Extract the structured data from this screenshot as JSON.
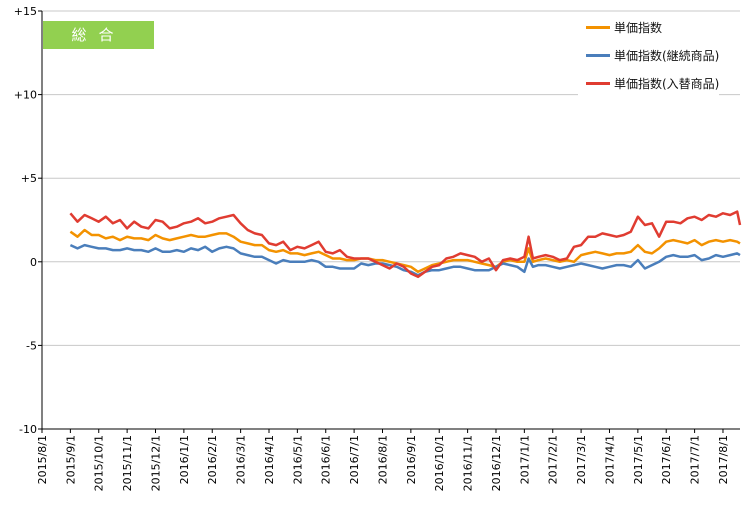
{
  "badge": "総合",
  "colors": {
    "unit_price": "#f39200",
    "continuing": "#4a7ebb",
    "replacement": "#e03c31",
    "badge": "#92d050"
  },
  "chart_data": {
    "type": "line",
    "title": "",
    "xlabel": "",
    "ylabel": "",
    "ylim": [
      -10,
      15
    ],
    "y_ticks": [
      "+15",
      "+10",
      "+5",
      "0",
      "-5",
      "-10"
    ],
    "y_tick_values": [
      15,
      10,
      5,
      0,
      -5,
      -10
    ],
    "x_tick_labels": [
      "2015/8/1",
      "2015/9/1",
      "2015/10/1",
      "2015/11/1",
      "2015/12/1",
      "2016/1/1",
      "2016/2/1",
      "2016/3/1",
      "2016/4/1",
      "2016/5/1",
      "2016/6/1",
      "2016/7/1",
      "2016/8/1",
      "2016/9/1",
      "2016/10/1",
      "2016/11/1",
      "2016/12/1",
      "2017/1/1",
      "2017/2/1",
      "2017/3/1",
      "2017/4/1",
      "2017/5/1",
      "2017/6/1",
      "2017/7/1",
      "2017/8/1"
    ],
    "x_range_months": [
      0,
      24.6
    ],
    "grid": "horizontal",
    "legend_position": "top-right",
    "series": [
      {
        "name": "単価指数",
        "color": "#f39200",
        "points": [
          [
            1,
            1.8
          ],
          [
            1.25,
            1.5
          ],
          [
            1.5,
            1.9
          ],
          [
            1.75,
            1.6
          ],
          [
            2,
            1.6
          ],
          [
            2.25,
            1.4
          ],
          [
            2.5,
            1.5
          ],
          [
            2.75,
            1.3
          ],
          [
            3,
            1.5
          ],
          [
            3.25,
            1.4
          ],
          [
            3.5,
            1.4
          ],
          [
            3.75,
            1.3
          ],
          [
            4,
            1.6
          ],
          [
            4.25,
            1.4
          ],
          [
            4.5,
            1.3
          ],
          [
            4.75,
            1.4
          ],
          [
            5,
            1.5
          ],
          [
            5.25,
            1.6
          ],
          [
            5.5,
            1.5
          ],
          [
            5.75,
            1.5
          ],
          [
            6,
            1.6
          ],
          [
            6.25,
            1.7
          ],
          [
            6.5,
            1.7
          ],
          [
            6.75,
            1.5
          ],
          [
            7,
            1.2
          ],
          [
            7.25,
            1.1
          ],
          [
            7.5,
            1.0
          ],
          [
            7.75,
            1.0
          ],
          [
            8,
            0.7
          ],
          [
            8.25,
            0.6
          ],
          [
            8.5,
            0.7
          ],
          [
            8.75,
            0.5
          ],
          [
            9,
            0.5
          ],
          [
            9.25,
            0.4
          ],
          [
            9.5,
            0.5
          ],
          [
            9.75,
            0.6
          ],
          [
            10,
            0.4
          ],
          [
            10.25,
            0.2
          ],
          [
            10.5,
            0.2
          ],
          [
            10.75,
            0.1
          ],
          [
            11,
            0.1
          ],
          [
            11.25,
            0.2
          ],
          [
            11.5,
            0.2
          ],
          [
            11.75,
            0.1
          ],
          [
            12,
            0.1
          ],
          [
            12.25,
            0.0
          ],
          [
            12.5,
            -0.1
          ],
          [
            12.75,
            -0.2
          ],
          [
            13,
            -0.3
          ],
          [
            13.25,
            -0.6
          ],
          [
            13.5,
            -0.4
          ],
          [
            13.75,
            -0.2
          ],
          [
            14,
            -0.1
          ],
          [
            14.25,
            0.0
          ],
          [
            14.5,
            0.1
          ],
          [
            14.75,
            0.1
          ],
          [
            15,
            0.1
          ],
          [
            15.25,
            0.0
          ],
          [
            15.5,
            -0.1
          ],
          [
            15.75,
            -0.2
          ],
          [
            16,
            -0.3
          ],
          [
            16.25,
            0.0
          ],
          [
            16.5,
            0.1
          ],
          [
            16.75,
            0.0
          ],
          [
            17,
            0.0
          ],
          [
            17.15,
            0.8
          ],
          [
            17.3,
            0.0
          ],
          [
            17.5,
            0.1
          ],
          [
            17.75,
            0.2
          ],
          [
            18,
            0.1
          ],
          [
            18.25,
            0.0
          ],
          [
            18.5,
            0.1
          ],
          [
            18.75,
            0.0
          ],
          [
            19,
            0.4
          ],
          [
            19.25,
            0.5
          ],
          [
            19.5,
            0.6
          ],
          [
            19.75,
            0.5
          ],
          [
            20,
            0.4
          ],
          [
            20.25,
            0.5
          ],
          [
            20.5,
            0.5
          ],
          [
            20.75,
            0.6
          ],
          [
            21,
            1.0
          ],
          [
            21.25,
            0.6
          ],
          [
            21.5,
            0.5
          ],
          [
            21.75,
            0.8
          ],
          [
            22,
            1.2
          ],
          [
            22.25,
            1.3
          ],
          [
            22.5,
            1.2
          ],
          [
            22.75,
            1.1
          ],
          [
            23,
            1.3
          ],
          [
            23.25,
            1.0
          ],
          [
            23.5,
            1.2
          ],
          [
            23.75,
            1.3
          ],
          [
            24,
            1.2
          ],
          [
            24.25,
            1.3
          ],
          [
            24.5,
            1.2
          ],
          [
            24.6,
            1.1
          ]
        ]
      },
      {
        "name": "単価指数(継続商品)",
        "color": "#4a7ebb",
        "points": [
          [
            1,
            1.0
          ],
          [
            1.25,
            0.8
          ],
          [
            1.5,
            1.0
          ],
          [
            1.75,
            0.9
          ],
          [
            2,
            0.8
          ],
          [
            2.25,
            0.8
          ],
          [
            2.5,
            0.7
          ],
          [
            2.75,
            0.7
          ],
          [
            3,
            0.8
          ],
          [
            3.25,
            0.7
          ],
          [
            3.5,
            0.7
          ],
          [
            3.75,
            0.6
          ],
          [
            4,
            0.8
          ],
          [
            4.25,
            0.6
          ],
          [
            4.5,
            0.6
          ],
          [
            4.75,
            0.7
          ],
          [
            5,
            0.6
          ],
          [
            5.25,
            0.8
          ],
          [
            5.5,
            0.7
          ],
          [
            5.75,
            0.9
          ],
          [
            6,
            0.6
          ],
          [
            6.25,
            0.8
          ],
          [
            6.5,
            0.9
          ],
          [
            6.75,
            0.8
          ],
          [
            7,
            0.5
          ],
          [
            7.25,
            0.4
          ],
          [
            7.5,
            0.3
          ],
          [
            7.75,
            0.3
          ],
          [
            8,
            0.1
          ],
          [
            8.25,
            -0.1
          ],
          [
            8.5,
            0.1
          ],
          [
            8.75,
            0.0
          ],
          [
            9,
            0.0
          ],
          [
            9.25,
            0.0
          ],
          [
            9.5,
            0.1
          ],
          [
            9.75,
            0.0
          ],
          [
            10,
            -0.3
          ],
          [
            10.25,
            -0.3
          ],
          [
            10.5,
            -0.4
          ],
          [
            10.75,
            -0.4
          ],
          [
            11,
            -0.4
          ],
          [
            11.25,
            -0.1
          ],
          [
            11.5,
            -0.2
          ],
          [
            11.75,
            -0.1
          ],
          [
            12,
            -0.1
          ],
          [
            12.25,
            -0.2
          ],
          [
            12.5,
            -0.3
          ],
          [
            12.75,
            -0.5
          ],
          [
            13,
            -0.6
          ],
          [
            13.25,
            -0.8
          ],
          [
            13.5,
            -0.6
          ],
          [
            13.75,
            -0.5
          ],
          [
            14,
            -0.5
          ],
          [
            14.25,
            -0.4
          ],
          [
            14.5,
            -0.3
          ],
          [
            14.75,
            -0.3
          ],
          [
            15,
            -0.4
          ],
          [
            15.25,
            -0.5
          ],
          [
            15.5,
            -0.5
          ],
          [
            15.75,
            -0.5
          ],
          [
            16,
            -0.3
          ],
          [
            16.25,
            -0.1
          ],
          [
            16.5,
            -0.2
          ],
          [
            16.75,
            -0.3
          ],
          [
            17,
            -0.6
          ],
          [
            17.15,
            0.2
          ],
          [
            17.3,
            -0.3
          ],
          [
            17.5,
            -0.2
          ],
          [
            17.75,
            -0.2
          ],
          [
            18,
            -0.3
          ],
          [
            18.25,
            -0.4
          ],
          [
            18.5,
            -0.3
          ],
          [
            18.75,
            -0.2
          ],
          [
            19,
            -0.1
          ],
          [
            19.25,
            -0.2
          ],
          [
            19.5,
            -0.3
          ],
          [
            19.75,
            -0.4
          ],
          [
            20,
            -0.3
          ],
          [
            20.25,
            -0.2
          ],
          [
            20.5,
            -0.2
          ],
          [
            20.75,
            -0.3
          ],
          [
            21,
            0.1
          ],
          [
            21.25,
            -0.4
          ],
          [
            21.5,
            -0.2
          ],
          [
            21.75,
            0.0
          ],
          [
            22,
            0.3
          ],
          [
            22.25,
            0.4
          ],
          [
            22.5,
            0.3
          ],
          [
            22.75,
            0.3
          ],
          [
            23,
            0.4
          ],
          [
            23.25,
            0.1
          ],
          [
            23.5,
            0.2
          ],
          [
            23.75,
            0.4
          ],
          [
            24,
            0.3
          ],
          [
            24.25,
            0.4
          ],
          [
            24.5,
            0.5
          ],
          [
            24.6,
            0.4
          ]
        ]
      },
      {
        "name": "単価指数(入替商品)",
        "color": "#e03c31",
        "points": [
          [
            1,
            2.9
          ],
          [
            1.25,
            2.4
          ],
          [
            1.5,
            2.8
          ],
          [
            1.75,
            2.6
          ],
          [
            2,
            2.4
          ],
          [
            2.25,
            2.7
          ],
          [
            2.5,
            2.3
          ],
          [
            2.75,
            2.5
          ],
          [
            3,
            2.0
          ],
          [
            3.25,
            2.4
          ],
          [
            3.5,
            2.1
          ],
          [
            3.75,
            2.0
          ],
          [
            4,
            2.5
          ],
          [
            4.25,
            2.4
          ],
          [
            4.5,
            2.0
          ],
          [
            4.75,
            2.1
          ],
          [
            5,
            2.3
          ],
          [
            5.25,
            2.4
          ],
          [
            5.5,
            2.6
          ],
          [
            5.75,
            2.3
          ],
          [
            6,
            2.4
          ],
          [
            6.25,
            2.6
          ],
          [
            6.5,
            2.7
          ],
          [
            6.75,
            2.8
          ],
          [
            7,
            2.3
          ],
          [
            7.25,
            1.9
          ],
          [
            7.5,
            1.7
          ],
          [
            7.75,
            1.6
          ],
          [
            8,
            1.1
          ],
          [
            8.25,
            1.0
          ],
          [
            8.5,
            1.2
          ],
          [
            8.75,
            0.7
          ],
          [
            9,
            0.9
          ],
          [
            9.25,
            0.8
          ],
          [
            9.5,
            1.0
          ],
          [
            9.75,
            1.2
          ],
          [
            10,
            0.6
          ],
          [
            10.25,
            0.5
          ],
          [
            10.5,
            0.7
          ],
          [
            10.75,
            0.3
          ],
          [
            11,
            0.2
          ],
          [
            11.25,
            0.2
          ],
          [
            11.5,
            0.2
          ],
          [
            11.75,
            0.0
          ],
          [
            12,
            -0.2
          ],
          [
            12.25,
            -0.4
          ],
          [
            12.5,
            -0.1
          ],
          [
            12.75,
            -0.3
          ],
          [
            13,
            -0.7
          ],
          [
            13.25,
            -0.9
          ],
          [
            13.5,
            -0.6
          ],
          [
            13.75,
            -0.3
          ],
          [
            14,
            -0.2
          ],
          [
            14.25,
            0.2
          ],
          [
            14.5,
            0.3
          ],
          [
            14.75,
            0.5
          ],
          [
            15,
            0.4
          ],
          [
            15.25,
            0.3
          ],
          [
            15.5,
            0.0
          ],
          [
            15.75,
            0.2
          ],
          [
            16,
            -0.5
          ],
          [
            16.25,
            0.1
          ],
          [
            16.5,
            0.2
          ],
          [
            16.75,
            0.1
          ],
          [
            17,
            0.3
          ],
          [
            17.15,
            1.5
          ],
          [
            17.3,
            0.2
          ],
          [
            17.5,
            0.3
          ],
          [
            17.75,
            0.4
          ],
          [
            18,
            0.3
          ],
          [
            18.25,
            0.1
          ],
          [
            18.5,
            0.2
          ],
          [
            18.75,
            0.9
          ],
          [
            19,
            1.0
          ],
          [
            19.25,
            1.5
          ],
          [
            19.5,
            1.5
          ],
          [
            19.75,
            1.7
          ],
          [
            20,
            1.6
          ],
          [
            20.25,
            1.5
          ],
          [
            20.5,
            1.6
          ],
          [
            20.75,
            1.8
          ],
          [
            21,
            2.7
          ],
          [
            21.25,
            2.2
          ],
          [
            21.5,
            2.3
          ],
          [
            21.75,
            1.5
          ],
          [
            22,
            2.4
          ],
          [
            22.25,
            2.4
          ],
          [
            22.5,
            2.3
          ],
          [
            22.75,
            2.6
          ],
          [
            23,
            2.7
          ],
          [
            23.25,
            2.5
          ],
          [
            23.5,
            2.8
          ],
          [
            23.75,
            2.7
          ],
          [
            24,
            2.9
          ],
          [
            24.25,
            2.8
          ],
          [
            24.5,
            3.0
          ],
          [
            24.6,
            2.2
          ]
        ]
      }
    ]
  }
}
